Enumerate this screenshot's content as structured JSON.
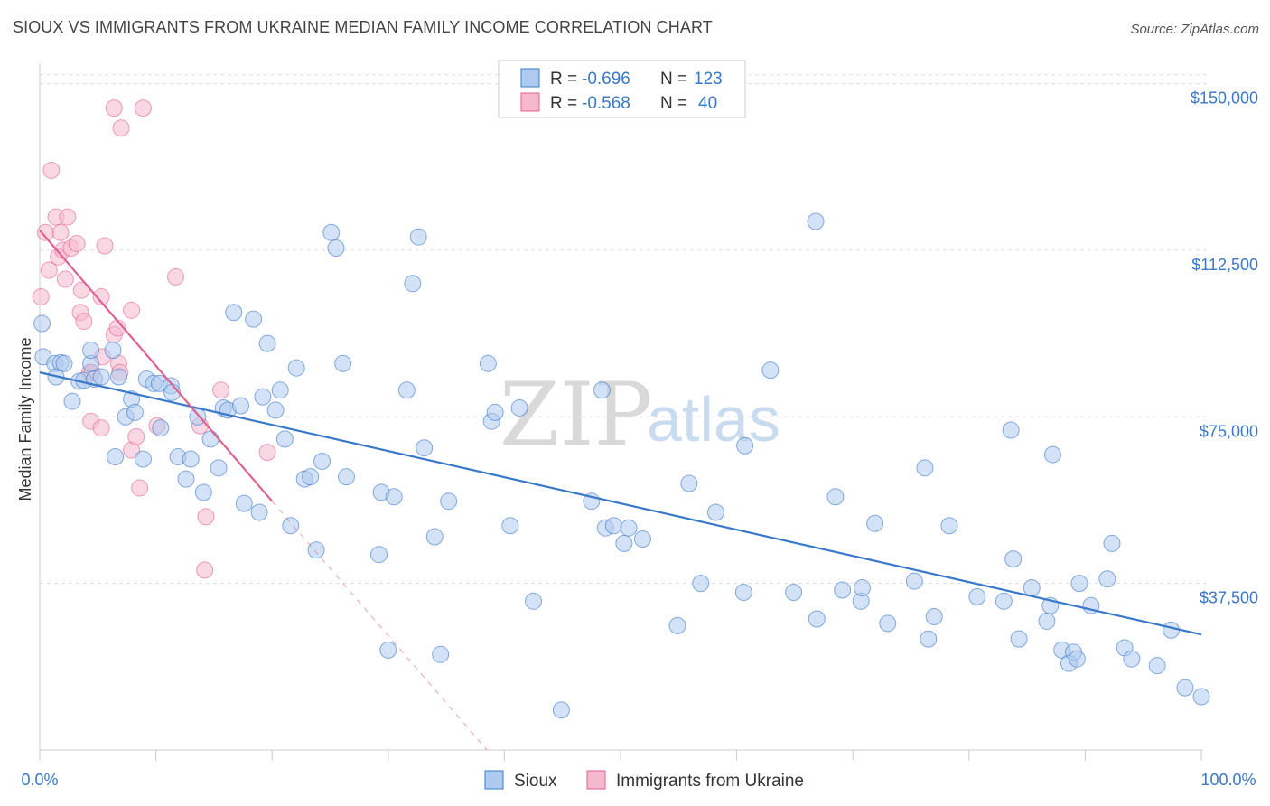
{
  "title": "SIOUX VS IMMIGRANTS FROM UKRAINE MEDIAN FAMILY INCOME CORRELATION CHART",
  "source": "Source: ZipAtlas.com",
  "watermark": {
    "part1": "ZIP",
    "part2": "atlas"
  },
  "colors": {
    "blue": "#3a78c9",
    "blue_fill": "#aecbef",
    "pink": "#e0608f",
    "pink_fill": "#f5b8cc",
    "grid": "#dddddd"
  },
  "chart_data": {
    "type": "scatter",
    "ylabel": "Median Family Income",
    "xlim": [
      0,
      100
    ],
    "ylim": [
      0,
      155000
    ],
    "x_tick_labels": [
      "0.0%",
      "100.0%"
    ],
    "y_ticks": [
      {
        "value": 37500,
        "label": "$37,500"
      },
      {
        "value": 75000,
        "label": "$75,000"
      },
      {
        "value": 112500,
        "label": "$112,500"
      },
      {
        "value": 150000,
        "label": "$150,000"
      }
    ],
    "legend_top": [
      {
        "r_label": "R =",
        "r": "-0.696",
        "n_label": "N =",
        "n": "123"
      },
      {
        "r_label": "R =",
        "r": "-0.568",
        "n_label": "N =",
        "n": "40"
      }
    ],
    "legend_bottom": [
      "Sioux",
      "Immigrants from Ukraine"
    ],
    "series": [
      {
        "name": "Sioux",
        "trend": [
          [
            0,
            85000
          ],
          [
            100,
            26000
          ]
        ],
        "points": [
          [
            0.2,
            96000
          ],
          [
            0.3,
            88500
          ],
          [
            1.3,
            87000
          ],
          [
            1.4,
            84000
          ],
          [
            1.8,
            87200
          ],
          [
            2.1,
            87000
          ],
          [
            2.8,
            78500
          ],
          [
            3.4,
            83000
          ],
          [
            3.8,
            83200
          ],
          [
            4.4,
            87000
          ],
          [
            4.4,
            90000
          ],
          [
            4.7,
            83500
          ],
          [
            5.3,
            84000
          ],
          [
            6.3,
            90000
          ],
          [
            6.5,
            66000
          ],
          [
            6.8,
            84000
          ],
          [
            7.4,
            75000
          ],
          [
            7.9,
            79000
          ],
          [
            8.2,
            76000
          ],
          [
            8.9,
            65500
          ],
          [
            9.2,
            83500
          ],
          [
            9.8,
            82500
          ],
          [
            10.3,
            82500
          ],
          [
            10.4,
            72500
          ],
          [
            11.3,
            82000
          ],
          [
            11.4,
            80500
          ],
          [
            11.9,
            66000
          ],
          [
            12.6,
            61000
          ],
          [
            13.0,
            65500
          ],
          [
            13.6,
            75000
          ],
          [
            14.1,
            58000
          ],
          [
            14.7,
            70000
          ],
          [
            15.4,
            63500
          ],
          [
            15.8,
            77000
          ],
          [
            16.2,
            76500
          ],
          [
            16.7,
            98500
          ],
          [
            17.3,
            77500
          ],
          [
            17.6,
            55500
          ],
          [
            18.4,
            97000
          ],
          [
            18.9,
            53500
          ],
          [
            19.2,
            79500
          ],
          [
            19.6,
            91500
          ],
          [
            20.3,
            76500
          ],
          [
            20.7,
            81000
          ],
          [
            21.1,
            70000
          ],
          [
            21.6,
            50500
          ],
          [
            22.1,
            86000
          ],
          [
            22.8,
            61000
          ],
          [
            23.3,
            61500
          ],
          [
            23.8,
            45000
          ],
          [
            24.3,
            65000
          ],
          [
            25.1,
            116500
          ],
          [
            25.5,
            113000
          ],
          [
            26.1,
            87000
          ],
          [
            26.4,
            61500
          ],
          [
            29.2,
            44000
          ],
          [
            29.4,
            58000
          ],
          [
            30.0,
            22500
          ],
          [
            30.5,
            57000
          ],
          [
            31.6,
            81000
          ],
          [
            32.1,
            105000
          ],
          [
            32.6,
            115500
          ],
          [
            33.1,
            68000
          ],
          [
            34.0,
            48000
          ],
          [
            34.5,
            21500
          ],
          [
            35.2,
            56000
          ],
          [
            38.6,
            87000
          ],
          [
            38.9,
            74000
          ],
          [
            39.2,
            76000
          ],
          [
            40.5,
            50500
          ],
          [
            41.3,
            77000
          ],
          [
            42.5,
            33500
          ],
          [
            44.9,
            9000
          ],
          [
            47.5,
            56000
          ],
          [
            48.4,
            81000
          ],
          [
            48.7,
            50000
          ],
          [
            49.4,
            50500
          ],
          [
            50.3,
            46500
          ],
          [
            50.7,
            50000
          ],
          [
            51.9,
            47500
          ],
          [
            54.9,
            28000
          ],
          [
            55.9,
            60000
          ],
          [
            56.9,
            37500
          ],
          [
            58.2,
            53500
          ],
          [
            60.6,
            35500
          ],
          [
            60.7,
            68500
          ],
          [
            62.9,
            85500
          ],
          [
            64.9,
            35500
          ],
          [
            66.8,
            119000
          ],
          [
            66.9,
            29500
          ],
          [
            68.5,
            57000
          ],
          [
            69.1,
            36000
          ],
          [
            70.7,
            33500
          ],
          [
            70.8,
            36500
          ],
          [
            71.9,
            51000
          ],
          [
            73.0,
            28500
          ],
          [
            75.3,
            38000
          ],
          [
            76.2,
            63500
          ],
          [
            76.5,
            25000
          ],
          [
            77.0,
            30000
          ],
          [
            78.3,
            50500
          ],
          [
            80.7,
            34500
          ],
          [
            83.0,
            33500
          ],
          [
            83.6,
            72000
          ],
          [
            83.8,
            43000
          ],
          [
            84.3,
            25000
          ],
          [
            85.4,
            36500
          ],
          [
            86.7,
            29000
          ],
          [
            87.0,
            32500
          ],
          [
            87.2,
            66500
          ],
          [
            88.0,
            22500
          ],
          [
            88.6,
            19500
          ],
          [
            89.0,
            22000
          ],
          [
            89.3,
            20500
          ],
          [
            89.5,
            37500
          ],
          [
            90.5,
            32500
          ],
          [
            91.9,
            38500
          ],
          [
            92.3,
            46500
          ],
          [
            93.4,
            23000
          ],
          [
            94.0,
            20500
          ],
          [
            96.2,
            19000
          ],
          [
            97.4,
            27000
          ],
          [
            98.6,
            14000
          ],
          [
            100.0,
            12000
          ]
        ]
      },
      {
        "name": "Immigrants from Ukraine",
        "trend": [
          [
            0,
            117000
          ],
          [
            20,
            56000
          ]
        ],
        "trend_dashed": [
          [
            20,
            56000
          ],
          [
            38.5,
            0
          ]
        ],
        "points": [
          [
            0.1,
            102000
          ],
          [
            0.5,
            116500
          ],
          [
            0.8,
            108000
          ],
          [
            1.0,
            130500
          ],
          [
            1.4,
            120000
          ],
          [
            1.6,
            111000
          ],
          [
            1.8,
            116500
          ],
          [
            2.0,
            112500
          ],
          [
            2.2,
            106000
          ],
          [
            2.4,
            120000
          ],
          [
            2.7,
            113000
          ],
          [
            3.2,
            114000
          ],
          [
            3.5,
            98500
          ],
          [
            3.6,
            103500
          ],
          [
            3.8,
            96500
          ],
          [
            4.3,
            85000
          ],
          [
            4.4,
            74000
          ],
          [
            4.5,
            85000
          ],
          [
            5.3,
            72500
          ],
          [
            5.3,
            102000
          ],
          [
            5.4,
            88500
          ],
          [
            5.6,
            113500
          ],
          [
            6.4,
            93500
          ],
          [
            6.7,
            95000
          ],
          [
            6.8,
            87000
          ],
          [
            6.9,
            85000
          ],
          [
            6.4,
            144500
          ],
          [
            7.0,
            140000
          ],
          [
            7.9,
            67500
          ],
          [
            7.9,
            99000
          ],
          [
            8.3,
            70500
          ],
          [
            8.6,
            59000
          ],
          [
            8.9,
            144500
          ],
          [
            10.1,
            73000
          ],
          [
            11.7,
            106500
          ],
          [
            13.8,
            73000
          ],
          [
            14.3,
            52500
          ],
          [
            14.2,
            40500
          ],
          [
            15.6,
            81000
          ],
          [
            19.6,
            67000
          ]
        ]
      }
    ]
  }
}
